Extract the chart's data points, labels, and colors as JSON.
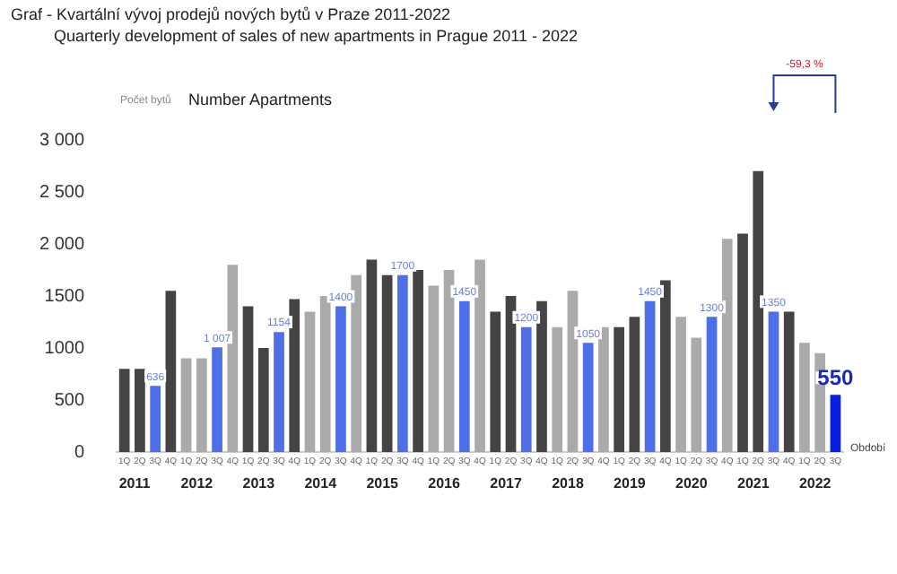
{
  "chart_data": {
    "type": "bar",
    "title": "Graf - Kvartální vývoj prodejů nových bytů v Praze 2011-2022",
    "subtitle": "Quarterly development of sales of new apartments in Prague 2011 - 2022",
    "ylabel": "Počet bytů",
    "xlabel": "Období",
    "annotations": [
      "Number Apartments",
      "-59,3 %",
      "2011",
      "2012",
      "2013",
      "2014",
      "2015",
      "2016",
      "2017",
      "2018",
      "2019",
      "2020",
      "2021",
      "2022"
    ],
    "categories": [
      "1Q",
      "2Q",
      "3Q",
      "4Q",
      "1Q",
      "2Q",
      "3Q",
      "4Q",
      "1Q",
      "2Q",
      "3Q",
      "4Q",
      "1Q",
      "2Q",
      "3Q",
      "4Q",
      "1Q",
      "2Q",
      "3Q",
      "4Q",
      "1Q",
      "2Q",
      "3Q",
      "4Q",
      "1Q",
      "2Q",
      "3Q",
      "4Q",
      "1Q",
      "2Q",
      "3Q",
      "4Q",
      "1Q",
      "2Q",
      "3Q",
      "4Q",
      "1Q",
      "2Q",
      "3Q",
      "4Q",
      "1Q",
      "2Q",
      "3Q",
      "4Q",
      "1Q",
      "2Q",
      "3Q"
    ],
    "values": [
      800,
      800,
      636,
      1550,
      900,
      900,
      1007,
      1800,
      1400,
      1000,
      1154,
      1470,
      1350,
      1500,
      1400,
      1700,
      1850,
      1700,
      1700,
      1750,
      1600,
      1750,
      1450,
      1850,
      1350,
      1500,
      1200,
      1450,
      1200,
      1550,
      1050,
      1200,
      1200,
      1300,
      1450,
      1650,
      1300,
      1100,
      1300,
      2050,
      2100,
      2700,
      1350,
      1350,
      1050,
      950,
      550
    ],
    "value_labels": [
      null,
      null,
      "636",
      null,
      null,
      null,
      "1 007",
      null,
      null,
      null,
      "1154",
      null,
      null,
      null,
      "1400",
      null,
      null,
      null,
      "1700",
      null,
      null,
      null,
      "1450",
      null,
      null,
      null,
      "1200",
      null,
      null,
      null,
      "1050",
      null,
      null,
      null,
      "1450",
      null,
      null,
      null,
      "1300",
      null,
      null,
      null,
      "1350",
      null,
      null,
      null,
      "550"
    ],
    "colors": [
      "#444444",
      "#444444",
      "#4f6fe8",
      "#444444",
      "#aaaaaa",
      "#aaaaaa",
      "#4f6fe8",
      "#aaaaaa",
      "#444444",
      "#444444",
      "#4f6fe8",
      "#444444",
      "#aaaaaa",
      "#aaaaaa",
      "#4f6fe8",
      "#aaaaaa",
      "#444444",
      "#444444",
      "#4f6fe8",
      "#444444",
      "#aaaaaa",
      "#aaaaaa",
      "#4f6fe8",
      "#aaaaaa",
      "#444444",
      "#444444",
      "#4f6fe8",
      "#444444",
      "#aaaaaa",
      "#aaaaaa",
      "#4f6fe8",
      "#aaaaaa",
      "#444444",
      "#444444",
      "#4f6fe8",
      "#444444",
      "#aaaaaa",
      "#aaaaaa",
      "#4f6fe8",
      "#aaaaaa",
      "#444444",
      "#444444",
      "#4f6fe8",
      "#444444",
      "#aaaaaa",
      "#aaaaaa",
      "#0a1ee0"
    ],
    "ylim": [
      0,
      3000
    ],
    "yticks": [
      0,
      500,
      {
        "value": 1000,
        "label": "1000"
      },
      {
        "value": 1500,
        "label": "1500"
      },
      {
        "value": 2000,
        "label": "2 000"
      },
      {
        "value": 2500,
        "label": "2 500"
      },
      {
        "value": 3000,
        "label": "3 000"
      }
    ],
    "grid": false,
    "legend": false
  }
}
